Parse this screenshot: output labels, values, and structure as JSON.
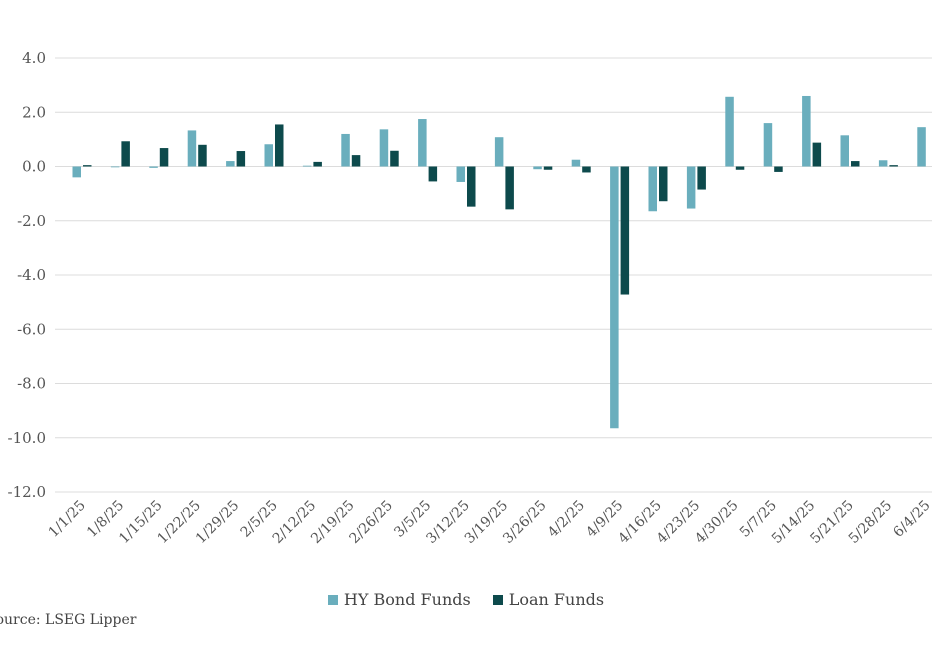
{
  "chart_data": {
    "type": "bar",
    "title": "",
    "xlabel": "",
    "ylabel": "",
    "ylim": [
      -12,
      4
    ],
    "yticks": [
      "4.0",
      "2.0",
      "0.0",
      "-2.0",
      "-4.0",
      "-6.0",
      "-8.0",
      "-10.0",
      "-12.0"
    ],
    "ytick_values": [
      4,
      2,
      0,
      -2,
      -4,
      -6,
      -8,
      -10,
      -12
    ],
    "categories": [
      "1/1/25",
      "1/8/25",
      "1/15/25",
      "1/22/25",
      "1/29/25",
      "2/5/25",
      "2/12/25",
      "2/19/25",
      "2/26/25",
      "3/5/25",
      "3/12/25",
      "3/19/25",
      "3/26/25",
      "4/2/25",
      "4/9/25",
      "4/16/25",
      "4/23/25",
      "4/30/25",
      "5/7/25",
      "5/14/25",
      "5/21/25",
      "5/28/25",
      "6/4/25"
    ],
    "grid": true,
    "legend_position": "bottom",
    "series": [
      {
        "name": "HY Bond Funds",
        "color": "#6aaebd",
        "values": [
          -0.4,
          -0.03,
          -0.05,
          1.33,
          0.2,
          0.82,
          0.03,
          1.2,
          1.37,
          1.75,
          -0.57,
          1.08,
          -0.1,
          0.25,
          -9.65,
          -1.65,
          -1.55,
          2.57,
          1.6,
          2.6,
          1.15,
          0.23,
          1.45
        ]
      },
      {
        "name": "Loan Funds",
        "color": "#0d4a4c",
        "values": [
          0.05,
          0.93,
          0.68,
          0.8,
          0.57,
          1.55,
          0.17,
          0.42,
          0.58,
          -0.55,
          -1.48,
          -1.58,
          -0.12,
          -0.22,
          -4.72,
          -1.28,
          -0.85,
          -0.12,
          -0.2,
          0.88,
          0.2,
          0.05,
          null
        ]
      }
    ]
  },
  "source": "Source: LSEG Lipper"
}
